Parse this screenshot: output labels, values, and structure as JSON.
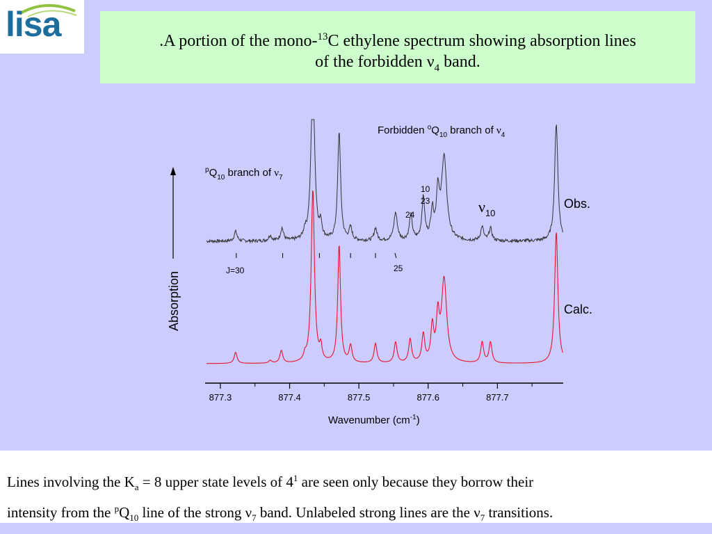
{
  "logo": {
    "text": "lisa",
    "arc_color": "#8fc241",
    "text_color": "#1d6e9c"
  },
  "title": {
    "part1": ".A portion of the mono-",
    "sup": "13",
    "part2": "C ethylene spectrum showing absorption lines",
    "line2a": "of the forbidden ",
    "nu": "ν",
    "sub": "4",
    "line2b": " band."
  },
  "caption": {
    "a": "Lines involving the K",
    "a_sub": "a",
    "b": " = 8 upper state levels of 4",
    "b_sup": "1",
    "c": " are seen only because they borrow their",
    "d": "intensity from the ",
    "d_sup": "p",
    "e": "Q",
    "e_sub": "10",
    "f": " line of the strong ν",
    "f_sub": "7",
    "g": " band.  Unlabeled strong lines are the ν",
    "g_sub": "7",
    "h": " transitions."
  },
  "colors": {
    "obs": "#333333",
    "calc": "#e8132b",
    "axis": "#000000"
  },
  "chart_data": {
    "type": "line",
    "title": "",
    "xlabel": "Wavenumber (cm-1)",
    "xlabel_main": "Wavenumber (cm",
    "xlabel_sup": "-1",
    "xlabel_end": ")",
    "ylabel": "Absorption",
    "xlim": [
      877.28,
      877.795
    ],
    "x_ticks": [
      877.3,
      877.4,
      877.5,
      877.6,
      877.7
    ],
    "x_tick_labels": [
      "877.3",
      "877.4",
      "877.5",
      "877.6",
      "877.7"
    ],
    "minor_ticks": [
      877.35,
      877.45,
      877.55,
      877.65,
      877.75
    ],
    "series": [
      {
        "name": "Obs.",
        "baseline": 0.12,
        "noise": 0.012,
        "peaks": [
          {
            "x": 877.322,
            "h": 0.07,
            "w": 0.0025
          },
          {
            "x": 877.372,
            "h": 0.04,
            "w": 0.0025
          },
          {
            "x": 877.389,
            "h": 0.09,
            "w": 0.0025
          },
          {
            "x": 877.422,
            "h": 0.05,
            "w": 0.002
          },
          {
            "x": 877.4335,
            "h": 1.25,
            "w": 0.003
          },
          {
            "x": 877.445,
            "h": 0.1,
            "w": 0.002
          },
          {
            "x": 877.4715,
            "h": 0.78,
            "w": 0.0025
          },
          {
            "x": 877.488,
            "h": 0.09,
            "w": 0.0025
          },
          {
            "x": 877.524,
            "h": 0.09,
            "w": 0.0025
          },
          {
            "x": 877.553,
            "h": 0.2,
            "w": 0.003
          },
          {
            "x": 877.575,
            "h": 0.18,
            "w": 0.0025
          },
          {
            "x": 877.593,
            "h": 0.3,
            "w": 0.0025
          },
          {
            "x": 877.606,
            "h": 0.2,
            "w": 0.0025
          },
          {
            "x": 877.614,
            "h": 0.32,
            "w": 0.0025
          },
          {
            "x": 877.623,
            "h": 0.6,
            "w": 0.0045
          },
          {
            "x": 877.678,
            "h": 0.1,
            "w": 0.0025
          },
          {
            "x": 877.69,
            "h": 0.09,
            "w": 0.0025
          },
          {
            "x": 877.785,
            "h": 0.85,
            "w": 0.0028
          }
        ]
      },
      {
        "name": "Calc.",
        "baseline": 0.0,
        "noise": 0.0,
        "peaks": [
          {
            "x": 877.322,
            "h": 0.08,
            "w": 0.0025
          },
          {
            "x": 877.372,
            "h": 0.02,
            "w": 0.0025
          },
          {
            "x": 877.388,
            "h": 0.09,
            "w": 0.0025
          },
          {
            "x": 877.422,
            "h": 0.04,
            "w": 0.002
          },
          {
            "x": 877.4335,
            "h": 1.25,
            "w": 0.0028
          },
          {
            "x": 877.445,
            "h": 0.1,
            "w": 0.002
          },
          {
            "x": 877.4715,
            "h": 0.85,
            "w": 0.0024
          },
          {
            "x": 877.488,
            "h": 0.12,
            "w": 0.0025
          },
          {
            "x": 877.524,
            "h": 0.14,
            "w": 0.0025
          },
          {
            "x": 877.553,
            "h": 0.15,
            "w": 0.0025
          },
          {
            "x": 877.574,
            "h": 0.17,
            "w": 0.0025
          },
          {
            "x": 877.593,
            "h": 0.2,
            "w": 0.0025
          },
          {
            "x": 877.606,
            "h": 0.25,
            "w": 0.0025
          },
          {
            "x": 877.614,
            "h": 0.3,
            "w": 0.0025
          },
          {
            "x": 877.623,
            "h": 0.6,
            "w": 0.0045
          },
          {
            "x": 877.678,
            "h": 0.15,
            "w": 0.0025
          },
          {
            "x": 877.69,
            "h": 0.15,
            "w": 0.0025
          },
          {
            "x": 877.785,
            "h": 0.95,
            "w": 0.0028
          }
        ]
      }
    ],
    "j_ticks": [
      877.323,
      877.39,
      877.443,
      877.488,
      877.524,
      877.553
    ],
    "j_label_first": "J=30",
    "j_label_last": "25",
    "annotations": {
      "forbidden_pre": "Forbidden ",
      "forbidden_sup": "o",
      "forbidden_q": "Q",
      "forbidden_qsub": "10",
      "forbidden_post": " branch of ",
      "forbidden_nu": "ν",
      "forbidden_nusub": "4",
      "p_sup": "p",
      "p_q": "Q",
      "p_qsub": "10",
      "p_post": " branch of ",
      "p_nu": "ν",
      "p_nusub": "7",
      "num_10": "10",
      "num_23": "23",
      "num_24": "24",
      "nu10_nu": "ν",
      "nu10_sub": "10",
      "obs": "Obs.",
      "calc": "Calc."
    }
  }
}
